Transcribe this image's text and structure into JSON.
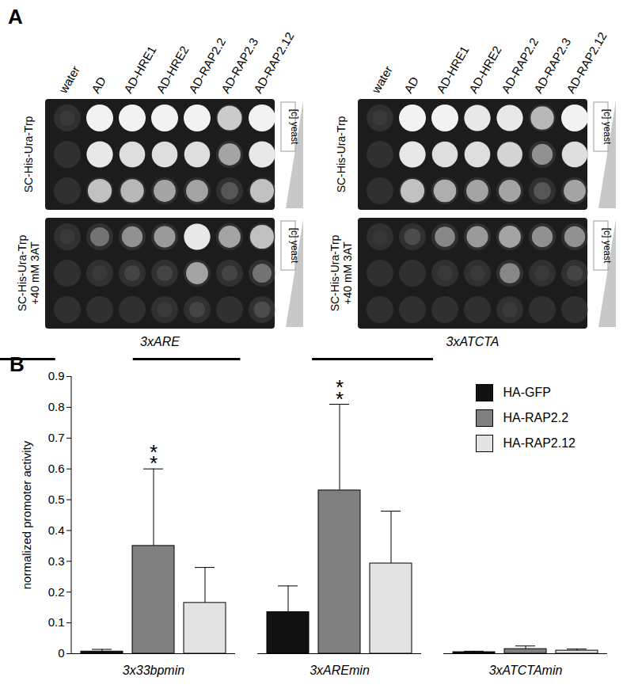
{
  "panel_a": {
    "label": "A",
    "columns": [
      "water",
      "AD",
      "AD-HRE1",
      "AD-HRE2",
      "AD-RAP2.2",
      "AD-RAP2.3",
      "AD-RAP2.12"
    ],
    "panels": [
      {
        "reporter": "3xARE",
        "concentration_label": "[c] yeast",
        "plates": [
          {
            "medium": [
              "SC-His-Ura-Trp"
            ],
            "growth": [
              [
                0.05,
                1,
                1,
                1,
                1,
                0.8,
                1
              ],
              [
                0,
                0.95,
                0.9,
                0.9,
                0.9,
                0.6,
                0.95
              ],
              [
                0,
                0.75,
                0.7,
                0.6,
                0.6,
                0.2,
                0.75
              ]
            ]
          },
          {
            "medium": [
              "SC-His-Ura-Trp",
              "+40 mM 3AT"
            ],
            "growth": [
              [
                0.05,
                0.35,
                0.5,
                0.55,
                0.95,
                0.6,
                0.75
              ],
              [
                0,
                0.05,
                0.1,
                0.1,
                0.6,
                0.1,
                0.35
              ],
              [
                0,
                0,
                0,
                0.05,
                0.1,
                0,
                0.15
              ]
            ]
          }
        ]
      },
      {
        "reporter": "3xATCTA",
        "concentration_label": "[c] yeast",
        "plates": [
          {
            "medium": [
              "SC-His-Ura-Trp"
            ],
            "growth": [
              [
                0.05,
                1,
                1,
                0.95,
                0.95,
                0.7,
                1
              ],
              [
                0,
                0.95,
                0.9,
                0.9,
                0.85,
                0.5,
                0.9
              ],
              [
                0,
                0.75,
                0.65,
                0.6,
                0.6,
                0.2,
                0.6
              ]
            ]
          },
          {
            "medium": [
              "SC-His-Ura-Trp",
              "+40 mM 3AT"
            ],
            "growth": [
              [
                0.03,
                0.15,
                0.45,
                0.55,
                0.6,
                0.5,
                0.5
              ],
              [
                0,
                0,
                0.05,
                0.05,
                0.45,
                0.05,
                0.1
              ],
              [
                0,
                0,
                0,
                0,
                0.05,
                0,
                0
              ]
            ]
          }
        ]
      }
    ]
  },
  "panel_b": {
    "label": "B"
  },
  "chart_data": {
    "type": "bar",
    "y_label": "normalized promoter activity",
    "categories": [
      "3x33bpmin",
      "3xAREmin",
      "3xATCTAmin"
    ],
    "series": [
      {
        "name": "HA-GFP",
        "color": "#111111",
        "values": [
          0.007,
          0.135,
          0.005
        ],
        "errors": [
          0.007,
          0.085,
          0.003
        ]
      },
      {
        "name": "HA-RAP2.2",
        "color": "#808080",
        "values": [
          0.35,
          0.53,
          0.015
        ],
        "errors": [
          0.25,
          0.28,
          0.01
        ]
      },
      {
        "name": "HA-RAP2.12",
        "color": "#e3e3e3",
        "values": [
          0.165,
          0.293,
          0.01
        ],
        "errors": [
          0.115,
          0.17,
          0.005
        ]
      }
    ],
    "annotations": [
      {
        "category": "3x33bpmin",
        "series": "HA-RAP2.2",
        "text": "**"
      },
      {
        "category": "3xAREmin",
        "series": "HA-RAP2.2",
        "text": "**"
      }
    ],
    "ylim": [
      0,
      0.9
    ],
    "yticks": [
      0,
      0.1,
      0.2,
      0.3,
      0.4,
      0.5,
      0.6,
      0.7,
      0.8,
      0.9
    ],
    "legend": "top-right",
    "grid": false
  }
}
